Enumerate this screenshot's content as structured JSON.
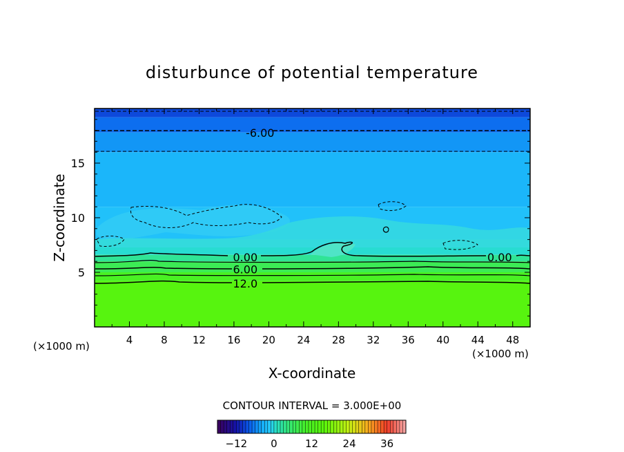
{
  "chart_data": {
    "type": "heatmap",
    "title": "disturbunce of potential temperature",
    "xlabel": "X-coordinate",
    "ylabel": "Z-coordinate",
    "x_unit": "(×1000 m)",
    "y_unit": "(×1000 m)",
    "xlim": [
      0,
      50
    ],
    "ylim": [
      0,
      20
    ],
    "x_ticks": [
      4,
      8,
      12,
      16,
      20,
      24,
      28,
      32,
      36,
      40,
      44,
      48
    ],
    "y_ticks": [
      5,
      10,
      15
    ],
    "contour_interval_label": "CONTOUR INTERVAL = 3.000E+00",
    "contour_labels": [
      {
        "text": "-6.00",
        "x": 19.0,
        "z": 17.8
      },
      {
        "text": "0.00",
        "x": 17.3,
        "z": 6.4
      },
      {
        "text": "0.00",
        "x": 46.5,
        "z": 6.4
      },
      {
        "text": "6.00",
        "x": 17.3,
        "z": 5.3
      },
      {
        "text": "12.0",
        "x": 17.3,
        "z": 4.0
      }
    ],
    "field_bands": [
      {
        "z_min": 19.2,
        "z_max": 20.0,
        "value": -9
      },
      {
        "z_min": 17.8,
        "z_max": 19.2,
        "value": -7
      },
      {
        "z_min": 16.0,
        "z_max": 17.8,
        "value": -5
      },
      {
        "z_min": 11.0,
        "z_max": 16.0,
        "value": -3
      },
      {
        "z_min": 8.0,
        "z_max": 11.0,
        "value": -2
      },
      {
        "z_min": 6.6,
        "z_max": 8.0,
        "value": 0
      },
      {
        "z_min": 6.0,
        "z_max": 6.6,
        "value": 3
      },
      {
        "z_min": 5.0,
        "z_max": 6.0,
        "value": 7
      },
      {
        "z_min": 4.2,
        "z_max": 5.0,
        "value": 11
      },
      {
        "z_min": 0.0,
        "z_max": 4.2,
        "value": 15
      }
    ],
    "colorbar": {
      "min": -18,
      "max": 42,
      "ticks": [
        -12,
        0,
        12,
        24,
        36
      ]
    }
  }
}
